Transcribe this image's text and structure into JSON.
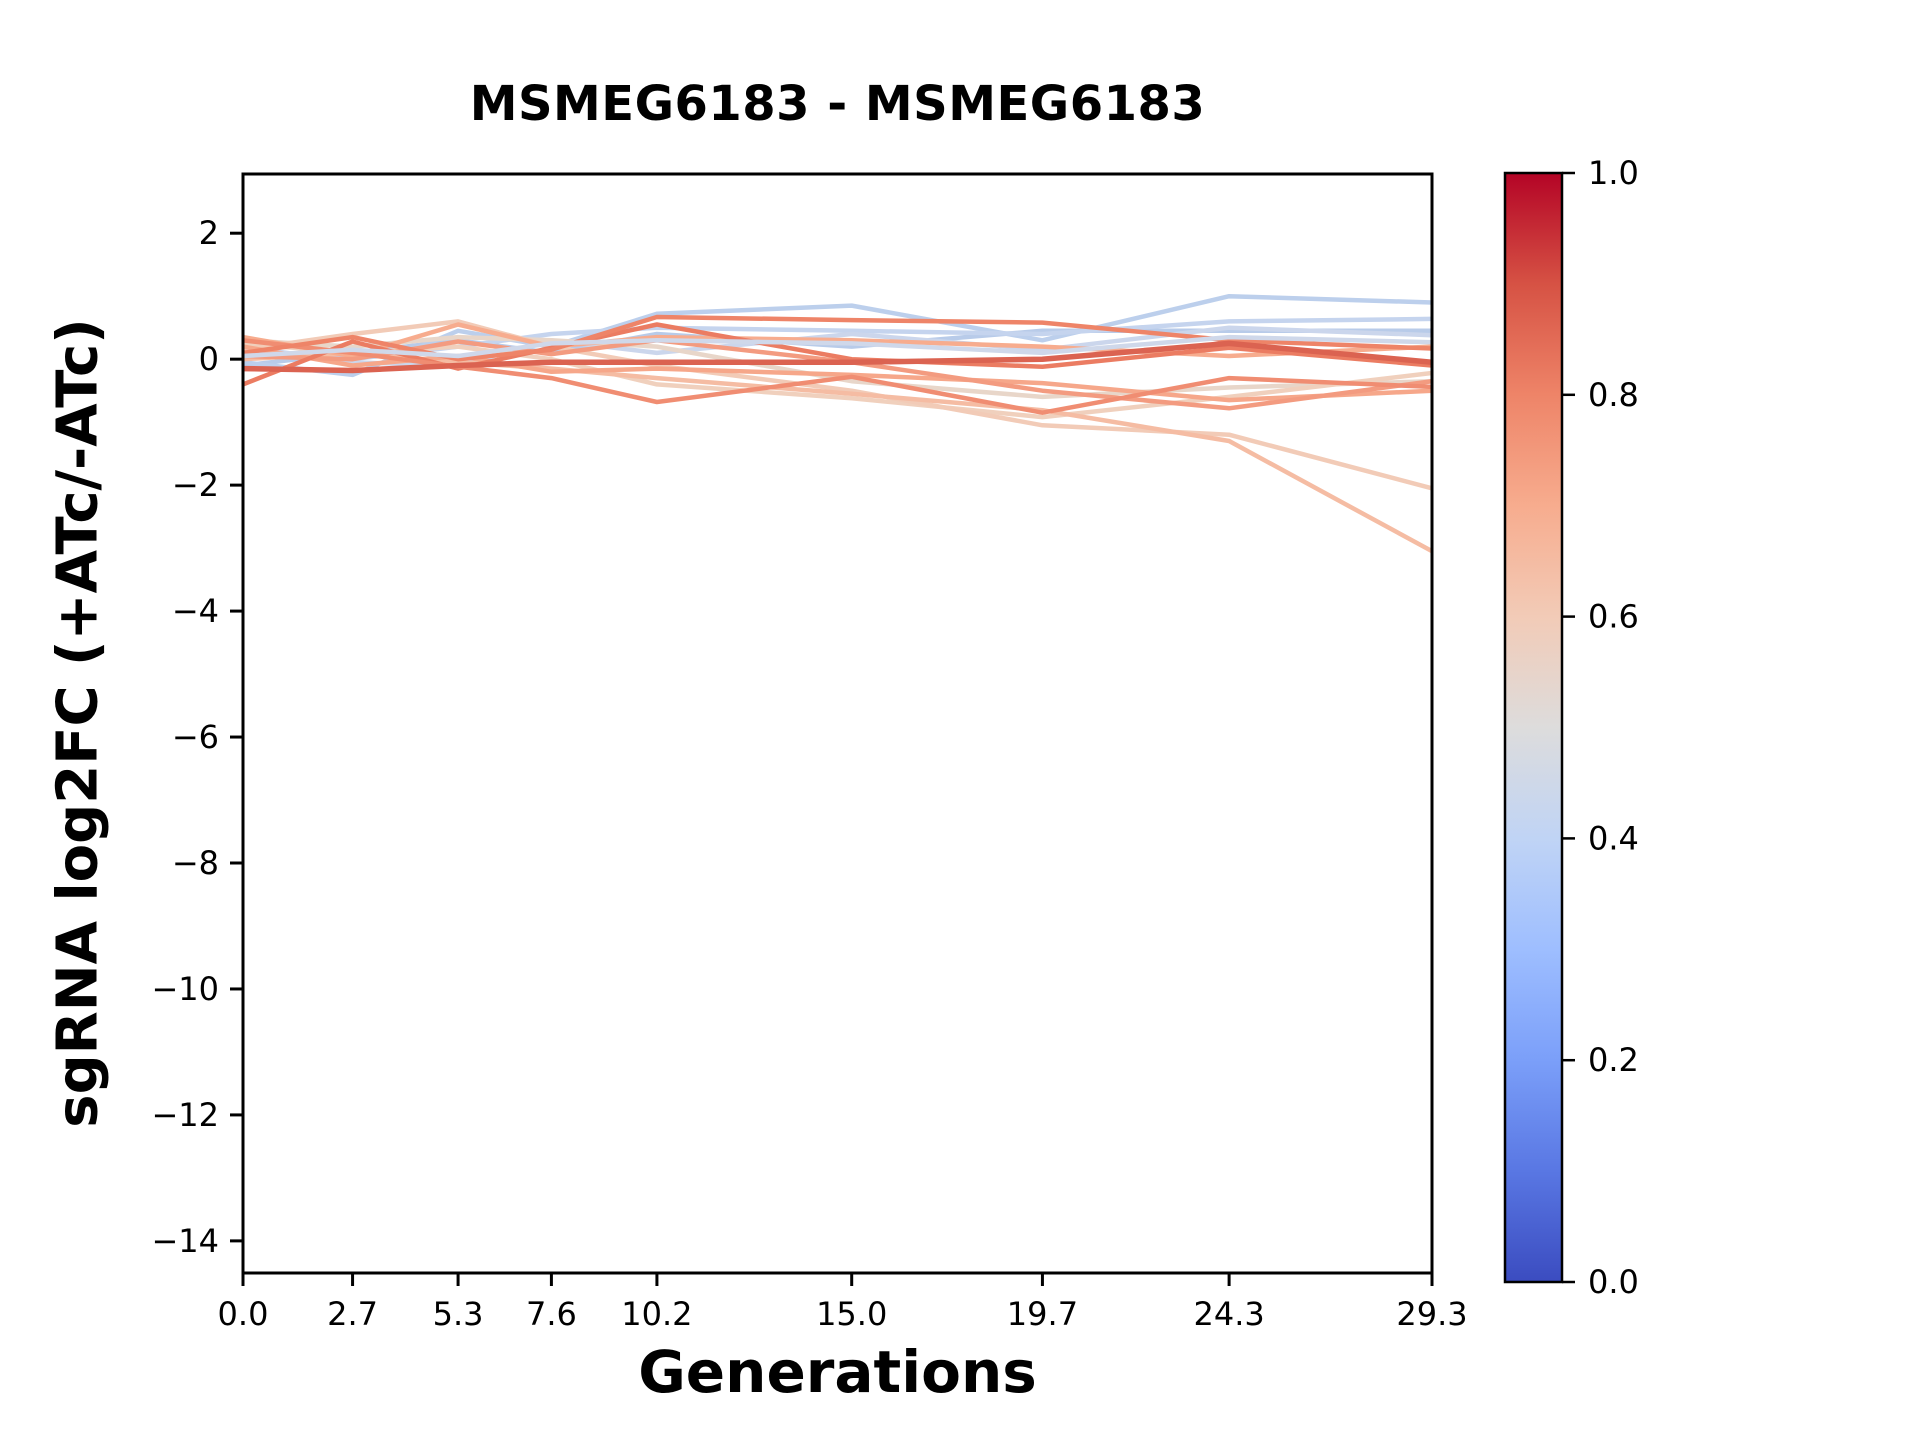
{
  "figure": {
    "title": "MSMEG6183 - MSMEG6183",
    "background": "#ffffff"
  },
  "chart_data": {
    "type": "line",
    "title": "MSMEG6183 - MSMEG6183",
    "xlabel": "Generations",
    "ylabel": "sgRNA log2FC (+ATc/-ATc)",
    "x": [
      0.0,
      2.7,
      5.3,
      7.6,
      10.2,
      15.0,
      19.7,
      24.3,
      29.3
    ],
    "x_tick_labels": [
      "0.0",
      "2.7",
      "5.3",
      "7.6",
      "10.2",
      "15.0",
      "19.7",
      "24.3",
      "29.3"
    ],
    "y_ticks": [
      2,
      0,
      -2,
      -4,
      -6,
      -8,
      -10,
      -12,
      -14
    ],
    "y_tick_labels": [
      "2",
      "0",
      "−2",
      "−4",
      "−6",
      "−8",
      "−10",
      "−12",
      "−14"
    ],
    "xlim": [
      0,
      29.3
    ],
    "ylim": [
      -14.51,
      2.94
    ],
    "grid": false,
    "legend_position": "colorbar-right",
    "series": [
      {
        "colormap_value": 0.38,
        "color": "#b8cbe9",
        "width": 4.5,
        "values": [
          -0.1,
          0.1,
          0.3,
          0.1,
          0.4,
          0.2,
          0.45,
          0.45,
          0.45
        ]
      },
      {
        "colormap_value": 0.4,
        "color": "#bccfec",
        "width": 4.5,
        "values": [
          -0.05,
          -0.25,
          0.45,
          0.2,
          0.72,
          0.85,
          0.3,
          1.0,
          0.9
        ]
      },
      {
        "colormap_value": 0.42,
        "color": "#c5d4ee",
        "width": 4.5,
        "values": [
          0.1,
          0.0,
          0.2,
          0.4,
          0.5,
          0.45,
          0.4,
          0.6,
          0.64
        ]
      },
      {
        "colormap_value": 0.44,
        "color": "#cbd6ec",
        "width": 4.5,
        "values": [
          0.2,
          -0.05,
          -0.1,
          0.3,
          0.1,
          0.4,
          0.15,
          0.5,
          0.38
        ]
      },
      {
        "colormap_value": 0.55,
        "color": "#e8d6c9",
        "width": 4.5,
        "values": [
          0.3,
          0.2,
          0.35,
          0.3,
          0.2,
          -0.35,
          -0.6,
          -0.45,
          -0.35
        ]
      },
      {
        "colormap_value": 0.58,
        "color": "#f0d0bd",
        "width": 4.5,
        "values": [
          0.25,
          0.1,
          0.2,
          0.0,
          -0.4,
          -0.62,
          -0.92,
          -0.6,
          -0.22
        ]
      },
      {
        "colormap_value": 0.6,
        "color": "#f2cbb7",
        "width": 4.5,
        "values": [
          0.15,
          0.4,
          0.6,
          0.2,
          -0.1,
          -0.5,
          -1.05,
          -1.2,
          -2.05
        ]
      },
      {
        "colormap_value": 0.65,
        "color": "#f5bca3",
        "width": 4.5,
        "values": [
          0.0,
          0.1,
          -0.05,
          -0.15,
          -0.3,
          -0.55,
          -0.81,
          -1.3,
          -3.05
        ]
      },
      {
        "colormap_value": 0.7,
        "color": "#f7ac8e",
        "width": 4.5,
        "values": [
          0.35,
          0.05,
          0.55,
          0.2,
          0.35,
          0.3,
          0.2,
          0.05,
          0.2
        ]
      },
      {
        "colormap_value": 0.72,
        "color": "#f6a78a",
        "width": 4.5,
        "values": [
          0.2,
          -0.1,
          0.05,
          -0.2,
          -0.15,
          -0.25,
          -0.38,
          -0.65,
          -0.5
        ]
      },
      {
        "colormap_value": 0.75,
        "color": "#f39b80",
        "width": 4.5,
        "values": [
          0.05,
          0.0,
          0.28,
          0.08,
          0.3,
          -0.05,
          -0.5,
          -0.78,
          -0.35
        ]
      },
      {
        "colormap_value": 0.82,
        "color": "#eb7c62",
        "width": 4.5,
        "values": [
          -0.4,
          0.28,
          -0.15,
          0.18,
          0.55,
          0.0,
          -0.12,
          0.18,
          -0.1
        ]
      },
      {
        "colormap_value": 0.78,
        "color": "#f08d72",
        "width": 4.5,
        "values": [
          0.3,
          0.1,
          -0.12,
          -0.3,
          -0.68,
          -0.28,
          -0.85,
          -0.3,
          -0.44
        ]
      },
      {
        "colormap_value": 0.8,
        "color": "#ee8468",
        "width": 4.5,
        "values": [
          0.1,
          0.35,
          0.0,
          0.15,
          0.67,
          0.62,
          0.58,
          0.3,
          0.17
        ]
      },
      {
        "colormap_value": 0.45,
        "color": "#cfd8ea",
        "width": 4.5,
        "values": [
          0.05,
          0.15,
          0.05,
          0.25,
          0.3,
          0.25,
          0.1,
          0.35,
          0.27
        ]
      },
      {
        "colormap_value": 0.87,
        "color": "#db6351",
        "width": 5.5,
        "values": [
          -0.15,
          -0.18,
          -0.1,
          -0.05,
          -0.05,
          -0.05,
          0.0,
          0.25,
          -0.05
        ]
      }
    ]
  },
  "colorbar": {
    "colormap": "coolwarm",
    "tick_labels": [
      "1.0",
      "0.8",
      "0.6",
      "0.4",
      "0.2",
      "0.0"
    ],
    "tick_values": [
      1.0,
      0.8,
      0.6,
      0.4,
      0.2,
      0.0
    ],
    "range": [
      0.0,
      1.0
    ],
    "gradient_top_to_bottom": [
      "#b40426",
      "#d65244",
      "#ee8468",
      "#f7ac8e",
      "#f2cbb7",
      "#dddcdc",
      "#c0d4f5",
      "#9ebeff",
      "#7b9ff9",
      "#5977e3",
      "#3b4cc0"
    ]
  }
}
